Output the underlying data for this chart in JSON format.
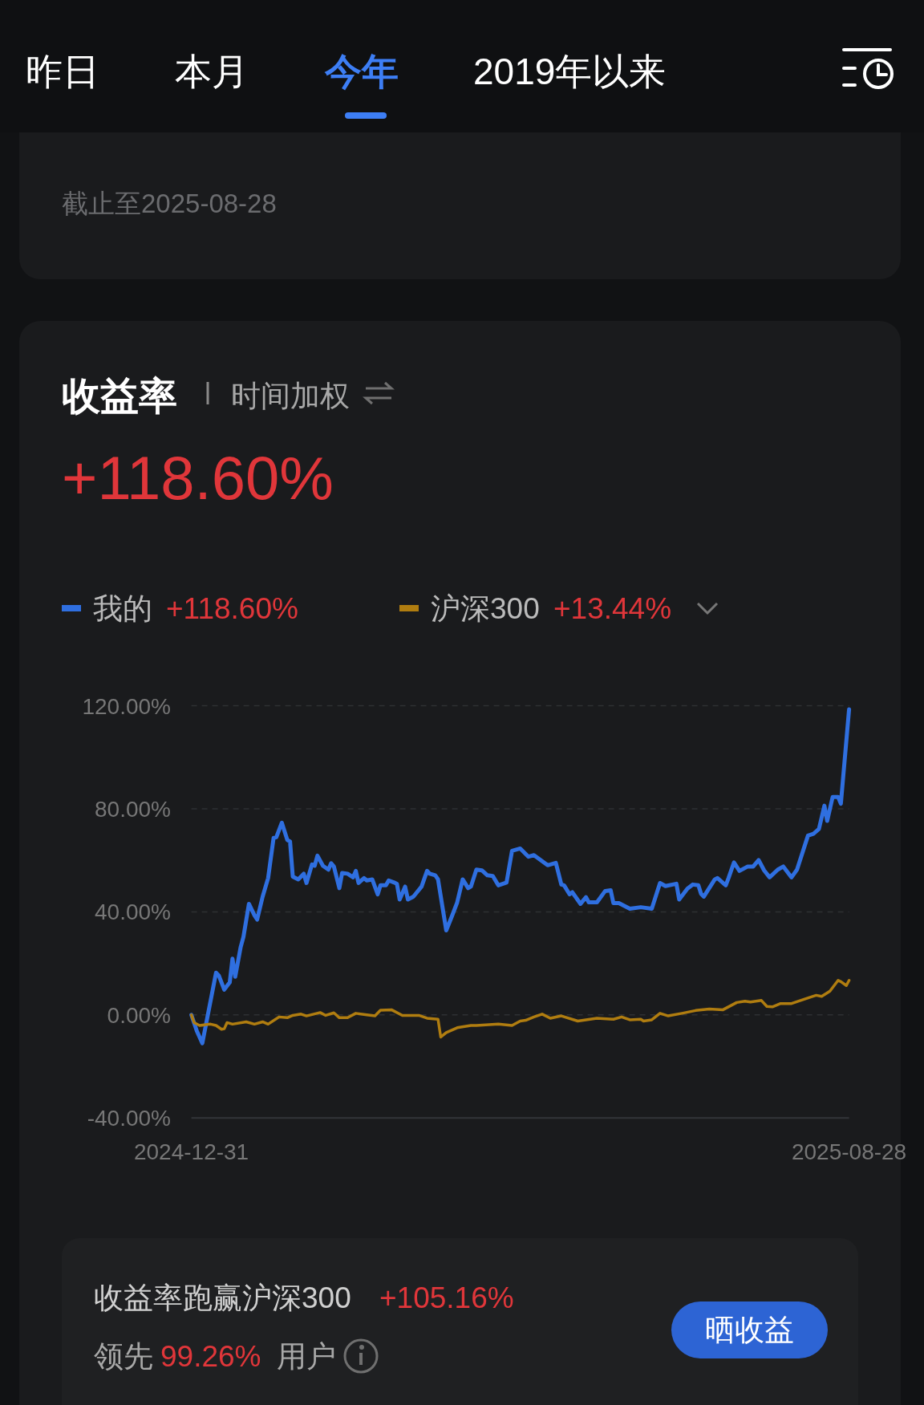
{
  "chart_data": {
    "type": "line",
    "title": "收益率",
    "subtitle": "时间加权",
    "annotations": [
      "昨日",
      "本月",
      "今年",
      "2019年以来",
      "截止至2025-08-28",
      "+118.60%",
      "+118.60%",
      "+13.44%",
      "收益率跑赢沪深300",
      "+105.16%",
      "领先",
      "99.26%",
      "用户",
      "晒收益"
    ],
    "xlim": [
      "2024-12-31",
      "2025-08-28"
    ],
    "xticks": [
      "2024-12-31",
      "2025-08-28"
    ],
    "ylim": [
      -40,
      120
    ],
    "yticks": [
      {
        "value": -40,
        "label": "-40.00%"
      },
      {
        "value": 0,
        "label": "0.00%"
      },
      {
        "value": 40,
        "label": "40.00%"
      },
      {
        "value": 80,
        "label": "80.00%"
      },
      {
        "value": 120,
        "label": "120.00%"
      }
    ],
    "grid": "y",
    "legend": "top left",
    "marker": "none",
    "line_style": "solid",
    "series": [
      {
        "name": "我的",
        "color": "#2f6fe0",
        "x": [
          "2024-12-31",
          "2025-01-02",
          "2025-01-04",
          "2025-01-09",
          "2025-01-10",
          "2025-01-12",
          "2025-01-14",
          "2025-01-15",
          "2025-01-16",
          "2025-01-18",
          "2025-01-19",
          "2025-01-21",
          "2025-01-23",
          "2025-01-24",
          "2025-01-26",
          "2025-01-28",
          "2025-01-30",
          "2025-01-31",
          "2025-02-02",
          "2025-02-04",
          "2025-02-05",
          "2025-02-06",
          "2025-02-08",
          "2025-02-10",
          "2025-02-11",
          "2025-02-13",
          "2025-02-14",
          "2025-02-15",
          "2025-02-17",
          "2025-02-19",
          "2025-02-20",
          "2025-02-21",
          "2025-02-23",
          "2025-02-24",
          "2025-02-26",
          "2025-02-28",
          "2025-03-01",
          "2025-03-02",
          "2025-03-04",
          "2025-03-05",
          "2025-03-07",
          "2025-03-09",
          "2025-03-10",
          "2025-03-12",
          "2025-03-13",
          "2025-03-15",
          "2025-03-16",
          "2025-03-17",
          "2025-03-19",
          "2025-03-20",
          "2025-03-22",
          "2025-03-25",
          "2025-03-27",
          "2025-03-28",
          "2025-03-30",
          "2025-03-31",
          "2025-04-03",
          "2025-04-05",
          "2025-04-07",
          "2025-04-09",
          "2025-04-11",
          "2025-04-12",
          "2025-04-14",
          "2025-04-16",
          "2025-04-18",
          "2025-04-20",
          "2025-04-22",
          "2025-04-25",
          "2025-04-27",
          "2025-04-30",
          "2025-05-03",
          "2025-05-05",
          "2025-05-10",
          "2025-05-13",
          "2025-05-15",
          "2025-05-16",
          "2025-05-18",
          "2025-05-19",
          "2025-05-22",
          "2025-05-24",
          "2025-05-25",
          "2025-05-28",
          "2025-05-31",
          "2025-06-02",
          "2025-06-03",
          "2025-06-05",
          "2025-06-09",
          "2025-06-13",
          "2025-06-17",
          "2025-06-20",
          "2025-06-22",
          "2025-06-26",
          "2025-06-27",
          "2025-06-30",
          "2025-07-02",
          "2025-07-04",
          "2025-07-05",
          "2025-07-06",
          "2025-07-10",
          "2025-07-11",
          "2025-07-14",
          "2025-07-15",
          "2025-07-17",
          "2025-07-19",
          "2025-07-22",
          "2025-07-24",
          "2025-07-26",
          "2025-07-28",
          "2025-07-30",
          "2025-08-02",
          "2025-08-04",
          "2025-08-07",
          "2025-08-09",
          "2025-08-13",
          "2025-08-15",
          "2025-08-17",
          "2025-08-19",
          "2025-08-20",
          "2025-08-22",
          "2025-08-24",
          "2025-08-25",
          "2025-08-28"
        ],
        "values": [
          0,
          -6.3,
          -11,
          16.4,
          15.3,
          9.8,
          12.6,
          21.8,
          14.8,
          26.4,
          30.3,
          43.1,
          38.7,
          37,
          45.9,
          53.1,
          68.7,
          69,
          74.6,
          67.9,
          67.3,
          53.7,
          52.6,
          54.8,
          51.2,
          58.4,
          57.9,
          61.8,
          57.9,
          56.4,
          58.9,
          57.6,
          49.2,
          55.1,
          54.8,
          53.4,
          55.9,
          51.2,
          53.1,
          52.2,
          52.6,
          46.8,
          50.3,
          50.3,
          52.2,
          51.4,
          50.9,
          44.8,
          49.8,
          44.8,
          45.9,
          49.8,
          55.9,
          54.8,
          54.2,
          52.6,
          32.8,
          38.1,
          43.7,
          52.6,
          49.2,
          49.8,
          56.4,
          56.1,
          54.2,
          53.9,
          50.3,
          51.4,
          63.7,
          64.6,
          61.4,
          62,
          58.1,
          59,
          50.6,
          50.3,
          46.8,
          47.6,
          43.1,
          45.7,
          43.7,
          43.7,
          48.1,
          48.4,
          43.4,
          43.4,
          41.2,
          41.8,
          41.2,
          51.2,
          50,
          50.9,
          44.8,
          49,
          50.6,
          50.3,
          47,
          45.9,
          52.6,
          53.1,
          50.3,
          53.1,
          59.2,
          55.9,
          57.6,
          57.6,
          60.1,
          56.1,
          53.4,
          56.4,
          57.6,
          53.4,
          56.4,
          69.6,
          70.3,
          72.2,
          81.2,
          75.3,
          84.6,
          84.6,
          82,
          118.6
        ]
      },
      {
        "name": "沪深300",
        "color": "#b07d10",
        "x": [
          "2024-12-31",
          "2025-01-01",
          "2025-01-03",
          "2025-01-07",
          "2025-01-09",
          "2025-01-11",
          "2025-01-12",
          "2025-01-13",
          "2025-01-15",
          "2025-01-20",
          "2025-01-23",
          "2025-01-26",
          "2025-01-28",
          "2025-02-01",
          "2025-02-04",
          "2025-02-06",
          "2025-02-09",
          "2025-02-11",
          "2025-02-16",
          "2025-02-18",
          "2025-02-21",
          "2025-02-23",
          "2025-02-26",
          "2025-03-01",
          "2025-03-05",
          "2025-03-08",
          "2025-03-10",
          "2025-03-14",
          "2025-03-18",
          "2025-03-24",
          "2025-03-27",
          "2025-03-31",
          "2025-04-01",
          "2025-04-03",
          "2025-04-07",
          "2025-04-12",
          "2025-04-14",
          "2025-04-22",
          "2025-04-27",
          "2025-04-30",
          "2025-05-02",
          "2025-05-05",
          "2025-05-08",
          "2025-05-11",
          "2025-05-15",
          "2025-05-21",
          "2025-05-28",
          "2025-06-03",
          "2025-06-06",
          "2025-06-09",
          "2025-06-13",
          "2025-06-14",
          "2025-06-17",
          "2025-06-20",
          "2025-06-23",
          "2025-06-28",
          "2025-07-03",
          "2025-07-08",
          "2025-07-13",
          "2025-07-18",
          "2025-07-21",
          "2025-07-23",
          "2025-07-27",
          "2025-07-29",
          "2025-07-31",
          "2025-08-03",
          "2025-08-07",
          "2025-08-12",
          "2025-08-16",
          "2025-08-18",
          "2025-08-21",
          "2025-08-24",
          "2025-08-25",
          "2025-08-27",
          "2025-08-28"
        ],
        "values": [
          0,
          -3,
          -4.1,
          -3.6,
          -4.1,
          -5.6,
          -5.4,
          -3,
          -3.6,
          -2.7,
          -3.6,
          -2.7,
          -3.6,
          -0.8,
          -1.1,
          -0.2,
          0.3,
          -0.4,
          0.9,
          -0.2,
          0.8,
          -1.1,
          -1.1,
          0.6,
          0,
          -0.4,
          1.8,
          2,
          -0.2,
          -0.2,
          -1.3,
          -1.7,
          -8.6,
          -6.9,
          -5,
          -4.1,
          -4.1,
          -3.6,
          -4.1,
          -2.4,
          -2.1,
          -0.8,
          0.3,
          -1.3,
          -0.4,
          -2.4,
          -1.3,
          -1.7,
          -0.8,
          -1.9,
          -1.7,
          -2.4,
          -1.9,
          0.6,
          -0.4,
          0.6,
          1.7,
          2.3,
          2,
          4.8,
          5.3,
          5,
          5.6,
          3.3,
          3.1,
          4.4,
          4.4,
          6.2,
          7.6,
          7.2,
          9.2,
          13.4,
          12.9,
          11.4,
          13.4
        ]
      }
    ]
  }
}
